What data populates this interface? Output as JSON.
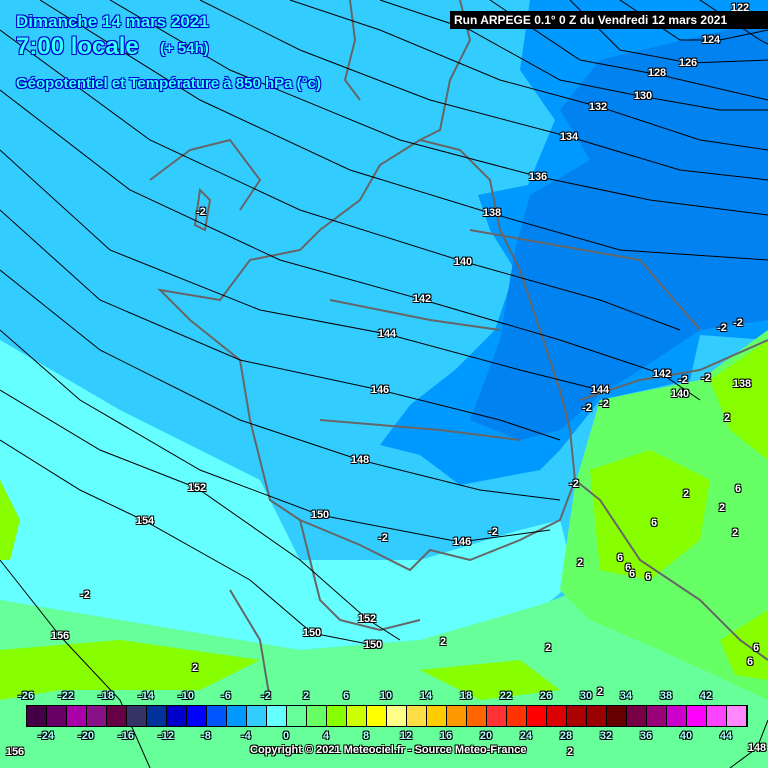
{
  "header": {
    "date": "Dimanche 14 mars 2021",
    "time": "7:00 locale",
    "lead": "(+ 54h)",
    "parameter": "Géopotentiel et Température à 850 hPa (°c)",
    "run": "Run ARPEGE 0.1° 0 Z du Vendredi 12 mars 2021"
  },
  "colors": {
    "cold_blue": "#33ccff",
    "mid_blue": "#0099ff",
    "deep_blue": "#0080f0",
    "cyan": "#66ffff",
    "mint": "#66ff99",
    "green": "#66ff66",
    "lime": "#88ff00"
  },
  "geopotential_labels": [
    "122",
    "124",
    "126",
    "128",
    "130",
    "132",
    "134",
    "136",
    "138",
    "140",
    "142",
    "144",
    "146",
    "148",
    "150",
    "152",
    "154",
    "156",
    "142",
    "140",
    "144",
    "146",
    "152",
    "150",
    "150",
    "148",
    "156",
    "138"
  ],
  "temperature_labels": [
    "-2",
    "-2",
    "-2",
    "-2",
    "-2",
    "-2",
    "-2",
    "-2",
    "-2",
    "-2",
    "-2",
    "2",
    "2",
    "2",
    "2",
    "2",
    "2",
    "2",
    "2",
    "2",
    "2",
    "6",
    "6",
    "6",
    "6",
    "6",
    "6",
    "6",
    "6"
  ],
  "legend": {
    "colors": [
      "#440044",
      "#660066",
      "#aa00aa",
      "#881188",
      "#660044",
      "#333366",
      "#003399",
      "#0000cc",
      "#0000ff",
      "#0055ff",
      "#0099ff",
      "#33ccff",
      "#66ffff",
      "#66ff99",
      "#66ff66",
      "#88ff00",
      "#ccff00",
      "#ffff00",
      "#ffff88",
      "#ffdd44",
      "#ffcc00",
      "#ff9900",
      "#ff6600",
      "#ff3333",
      "#ff3300",
      "#ff0000",
      "#dd0000",
      "#aa0000",
      "#990000",
      "#660000",
      "#770044",
      "#990077",
      "#cc00cc",
      "#ff00ff",
      "#ff44ff",
      "#ff88ff"
    ],
    "top_labels": [
      "-26",
      "-22",
      "-18",
      "-14",
      "-10",
      "-6",
      "-2",
      "2",
      "6",
      "10",
      "14",
      "18",
      "22",
      "26",
      "30",
      "34",
      "38",
      "42"
    ],
    "bottom_labels": [
      "-24",
      "-20",
      "-16",
      "-12",
      "-8",
      "-4",
      "0",
      "4",
      "8",
      "12",
      "16",
      "20",
      "24",
      "28",
      "32",
      "36",
      "40",
      "44"
    ]
  },
  "copyright": "Copyright © 2021 Meteociel.fr - Source Meteo-France"
}
